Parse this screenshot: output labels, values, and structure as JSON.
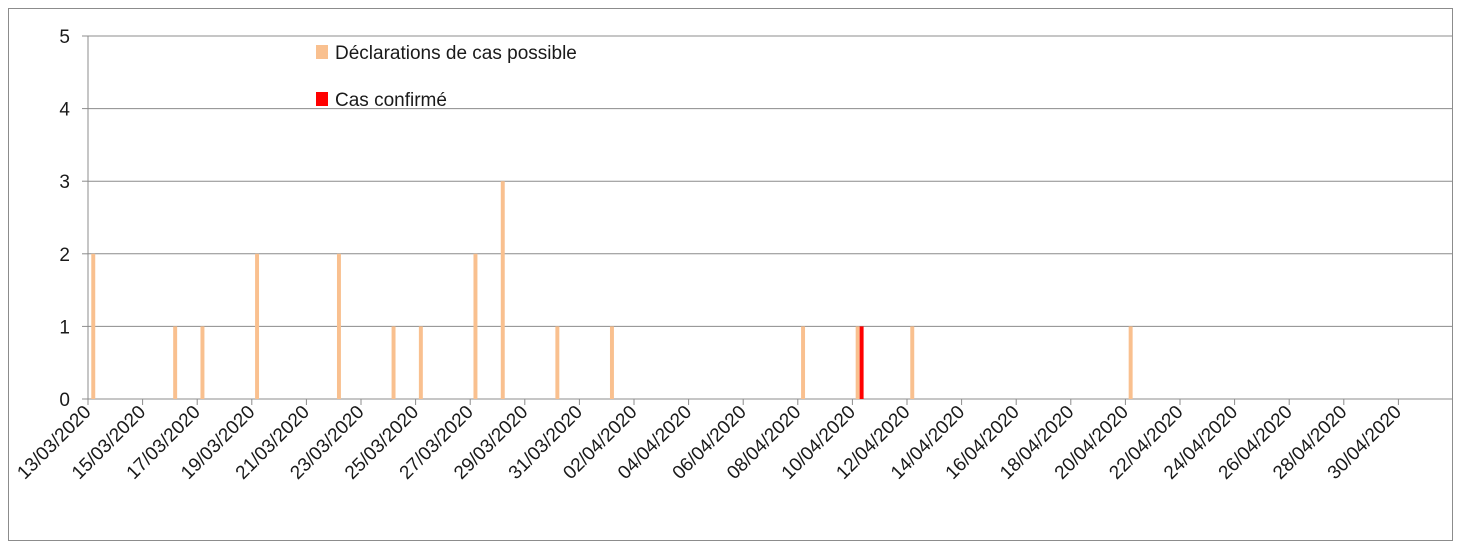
{
  "chart_data": {
    "type": "bar",
    "x_tick_labels": [
      "13/03/2020",
      "15/03/2020",
      "17/03/2020",
      "19/03/2020",
      "21/03/2020",
      "23/03/2020",
      "25/03/2020",
      "27/03/2020",
      "29/03/2020",
      "31/03/2020",
      "02/04/2020",
      "04/04/2020",
      "06/04/2020",
      "08/04/2020",
      "10/04/2020",
      "12/04/2020",
      "14/04/2020",
      "16/04/2020",
      "18/04/2020",
      "20/04/2020",
      "22/04/2020",
      "24/04/2020",
      "26/04/2020",
      "28/04/2020",
      "30/04/2020"
    ],
    "x_start": "13/03/2020",
    "x_end": "02/05/2020",
    "ylim": [
      0,
      5
    ],
    "y_ticks": [
      0,
      1,
      2,
      3,
      4,
      5
    ],
    "grid": true,
    "legend_position": "top-center",
    "series": [
      {
        "name": "Déclarations de cas possible",
        "color": "#f9c08f",
        "points": [
          {
            "date": "13/03/2020",
            "value": 2
          },
          {
            "date": "16/03/2020",
            "value": 1
          },
          {
            "date": "17/03/2020",
            "value": 1
          },
          {
            "date": "19/03/2020",
            "value": 2
          },
          {
            "date": "22/03/2020",
            "value": 2
          },
          {
            "date": "24/03/2020",
            "value": 1
          },
          {
            "date": "25/03/2020",
            "value": 1
          },
          {
            "date": "27/03/2020",
            "value": 2
          },
          {
            "date": "28/03/2020",
            "value": 3
          },
          {
            "date": "30/03/2020",
            "value": 1
          },
          {
            "date": "01/04/2020",
            "value": 1
          },
          {
            "date": "08/04/2020",
            "value": 1
          },
          {
            "date": "10/04/2020",
            "value": 1
          },
          {
            "date": "12/04/2020",
            "value": 1
          },
          {
            "date": "20/04/2020",
            "value": 1
          }
        ]
      },
      {
        "name": "Cas confirmé",
        "color": "#ff0000",
        "points": [
          {
            "date": "10/04/2020",
            "value": 1
          }
        ]
      }
    ]
  }
}
